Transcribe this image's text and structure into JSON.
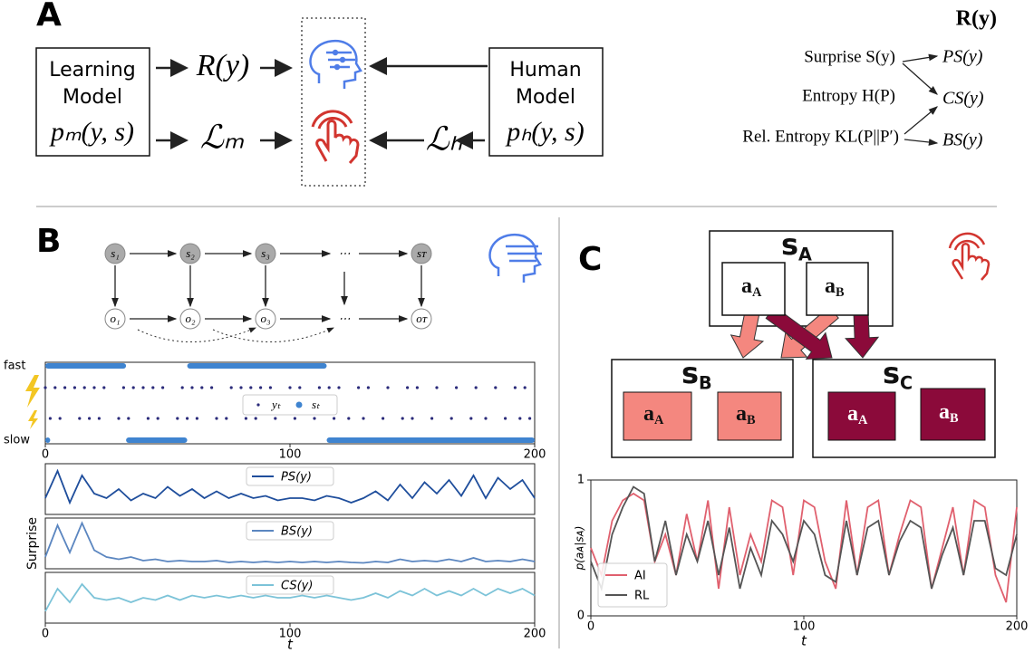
{
  "panels": {
    "a": "A",
    "b": "B",
    "c": "C"
  },
  "panel_a": {
    "learning_model": {
      "lines": [
        "Learning",
        "Model"
      ],
      "dist": "pₘ(y, s)"
    },
    "human_model": {
      "lines": [
        "Human",
        "Model"
      ],
      "dist": "pₕ(y, s)"
    },
    "reward": "R(y)",
    "loss_m": "ℒₘ",
    "loss_h": "ℒₕ",
    "measures": {
      "title": "R(y)",
      "rows": [
        {
          "label": "Surprise S(y)",
          "out": "PS(y)"
        },
        {
          "label": "Entropy H(P)",
          "out": "CS(y)"
        },
        {
          "label": "Rel. Entropy KL(P||P′)",
          "out": "BS(y)"
        }
      ]
    }
  },
  "panel_b": {
    "states": [
      "s₁",
      "s₂",
      "s₃",
      "⋯",
      "sᴛ"
    ],
    "observations": [
      "o₁",
      "o₂",
      "o₃",
      "⋯",
      "oᴛ"
    ]
  },
  "panel_c": {
    "root": {
      "s": "s",
      "sub": "A",
      "actions": [
        {
          "a": "a",
          "sub": "A"
        },
        {
          "a": "a",
          "sub": "B"
        }
      ]
    },
    "left": {
      "s": "s",
      "sub": "B",
      "actions": [
        {
          "a": "a",
          "sub": "A"
        },
        {
          "a": "a",
          "sub": "B"
        }
      ]
    },
    "right": {
      "s": "s",
      "sub": "C",
      "actions": [
        {
          "a": "a",
          "sub": "A"
        },
        {
          "a": "a",
          "sub": "B"
        }
      ]
    }
  },
  "chart_data": [
    {
      "type": "raster",
      "y_categories": [
        "fast",
        "slow"
      ],
      "xlim": [
        0,
        200
      ],
      "xticks": [
        0,
        100,
        200
      ],
      "series": [
        {
          "name": "yₜ",
          "color": "#2b2b7a",
          "rows": [
            {
              "x": [
                0,
                4,
                8,
                12,
                16,
                20,
                24,
                32,
                36,
                40,
                44,
                48,
                56,
                60,
                64,
                68,
                76,
                80,
                84,
                88,
                92,
                100,
                104,
                112,
                116,
                120,
                128,
                132,
                140,
                148,
                152,
                160,
                168,
                176,
                184,
                192,
                196
              ]
            },
            {
              "x": [
                2,
                6,
                14,
                18,
                22,
                30,
                34,
                42,
                46,
                54,
                58,
                62,
                70,
                74,
                82,
                86,
                94,
                102,
                110,
                118,
                124,
                130,
                138,
                146,
                150,
                158,
                166,
                174,
                180,
                188,
                194,
                198
              ]
            }
          ]
        },
        {
          "name": "sₜ",
          "color": "#3f84d0",
          "intervals": [
            {
              "state": "fast",
              "start": 0,
              "end": 33
            },
            {
              "state": "fast",
              "start": 58,
              "end": 115
            },
            {
              "state": "slow",
              "start": 0,
              "end": 2
            },
            {
              "state": "slow",
              "start": 33,
              "end": 58
            },
            {
              "state": "slow",
              "start": 115,
              "end": 200
            }
          ]
        }
      ]
    },
    {
      "type": "stacked-lines",
      "ylabel": "Surprise",
      "xlabel": "t",
      "xlim": [
        0,
        200
      ],
      "xticks": [
        0,
        100,
        200
      ],
      "x": [
        0,
        5,
        10,
        15,
        20,
        25,
        30,
        35,
        40,
        45,
        50,
        55,
        60,
        65,
        70,
        75,
        80,
        85,
        90,
        95,
        100,
        105,
        110,
        115,
        120,
        125,
        130,
        135,
        140,
        145,
        150,
        155,
        160,
        165,
        170,
        175,
        180,
        185,
        190,
        195,
        200
      ],
      "series": [
        {
          "name": "PS(y)",
          "color": "#1f4e9c",
          "ylim": [
            0,
            1
          ],
          "values": [
            0.3,
            0.9,
            0.2,
            0.8,
            0.4,
            0.3,
            0.5,
            0.25,
            0.4,
            0.3,
            0.55,
            0.35,
            0.5,
            0.3,
            0.45,
            0.3,
            0.4,
            0.3,
            0.35,
            0.25,
            0.3,
            0.3,
            0.25,
            0.35,
            0.3,
            0.2,
            0.3,
            0.45,
            0.25,
            0.6,
            0.3,
            0.65,
            0.4,
            0.7,
            0.35,
            0.8,
            0.3,
            0.75,
            0.5,
            0.7,
            0.3
          ]
        },
        {
          "name": "BS(y)",
          "color": "#5b86c0",
          "ylim": [
            0,
            1
          ],
          "values": [
            0.2,
            0.9,
            0.3,
            0.95,
            0.35,
            0.2,
            0.15,
            0.2,
            0.12,
            0.15,
            0.1,
            0.12,
            0.1,
            0.1,
            0.12,
            0.08,
            0.1,
            0.08,
            0.1,
            0.08,
            0.1,
            0.08,
            0.1,
            0.08,
            0.1,
            0.08,
            0.07,
            0.1,
            0.08,
            0.15,
            0.1,
            0.12,
            0.1,
            0.15,
            0.1,
            0.18,
            0.1,
            0.12,
            0.1,
            0.15,
            0.1
          ]
        },
        {
          "name": "CS(y)",
          "color": "#7cc3d8",
          "ylim": [
            0,
            1
          ],
          "values": [
            0.2,
            0.7,
            0.4,
            0.8,
            0.5,
            0.45,
            0.5,
            0.4,
            0.5,
            0.45,
            0.55,
            0.45,
            0.55,
            0.5,
            0.55,
            0.5,
            0.55,
            0.5,
            0.55,
            0.5,
            0.5,
            0.55,
            0.5,
            0.55,
            0.5,
            0.45,
            0.5,
            0.6,
            0.5,
            0.65,
            0.55,
            0.7,
            0.55,
            0.65,
            0.55,
            0.7,
            0.55,
            0.7,
            0.6,
            0.7,
            0.55
          ]
        }
      ]
    },
    {
      "type": "line",
      "ylabel": "p(aᴀ|sᴀ)",
      "xlabel": "t",
      "xlim": [
        0,
        200
      ],
      "xticks": [
        0,
        100,
        200
      ],
      "ylim": [
        0,
        1
      ],
      "yticks": [
        0,
        1
      ],
      "legend": "lower left",
      "x": [
        0,
        5,
        10,
        15,
        20,
        25,
        30,
        35,
        40,
        45,
        50,
        55,
        60,
        65,
        70,
        75,
        80,
        85,
        90,
        95,
        100,
        105,
        110,
        115,
        120,
        125,
        130,
        135,
        140,
        145,
        150,
        155,
        160,
        165,
        170,
        175,
        180,
        185,
        190,
        195,
        200
      ],
      "series": [
        {
          "name": "AI",
          "color": "#e0606e",
          "values": [
            0.5,
            0.3,
            0.7,
            0.85,
            0.9,
            0.85,
            0.4,
            0.6,
            0.3,
            0.75,
            0.4,
            0.85,
            0.2,
            0.8,
            0.3,
            0.6,
            0.4,
            0.85,
            0.8,
            0.3,
            0.85,
            0.8,
            0.4,
            0.2,
            0.85,
            0.3,
            0.8,
            0.85,
            0.3,
            0.6,
            0.85,
            0.8,
            0.2,
            0.5,
            0.8,
            0.3,
            0.85,
            0.8,
            0.3,
            0.1,
            0.8
          ]
        },
        {
          "name": "RL",
          "color": "#555555",
          "values": [
            0.4,
            0.2,
            0.6,
            0.8,
            0.95,
            0.9,
            0.4,
            0.7,
            0.3,
            0.6,
            0.4,
            0.7,
            0.3,
            0.65,
            0.2,
            0.5,
            0.3,
            0.7,
            0.6,
            0.4,
            0.7,
            0.6,
            0.3,
            0.25,
            0.7,
            0.3,
            0.65,
            0.7,
            0.3,
            0.55,
            0.7,
            0.65,
            0.2,
            0.45,
            0.65,
            0.3,
            0.7,
            0.7,
            0.35,
            0.3,
            0.6
          ]
        }
      ]
    }
  ]
}
